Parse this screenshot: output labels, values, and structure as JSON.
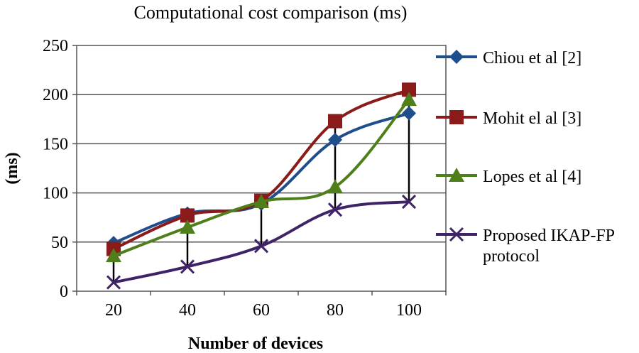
{
  "chart_data": {
    "type": "line",
    "title": "Computational cost comparison (ms)",
    "xlabel": "Number of devices",
    "ylabel": "(ms)",
    "categories": [
      "20",
      "40",
      "60",
      "80",
      "100"
    ],
    "ylim": [
      0,
      250
    ],
    "yticks": [
      0,
      50,
      100,
      150,
      200,
      250
    ],
    "grid": "horizontal",
    "legend_position": "right",
    "series": [
      {
        "name": "Chiou et al [2]",
        "color": "#1f4e8c",
        "marker": "diamond",
        "values": [
          49,
          79,
          89,
          154,
          181
        ]
      },
      {
        "name": "Mohit el al [3]",
        "color": "#8b1a1a",
        "marker": "square",
        "values": [
          43,
          77,
          92,
          173,
          205
        ]
      },
      {
        "name": "Lopes et al [4]",
        "color": "#4f7f1a",
        "marker": "triangle",
        "values": [
          36,
          65,
          91,
          106,
          195
        ]
      },
      {
        "name": "Proposed IKAP-FP protocol",
        "name_lines": [
          "Proposed IKAP-FP",
          "protocol"
        ],
        "color": "#3f2368",
        "marker": "x",
        "values": [
          9,
          25,
          46,
          83,
          91
        ]
      }
    ]
  }
}
